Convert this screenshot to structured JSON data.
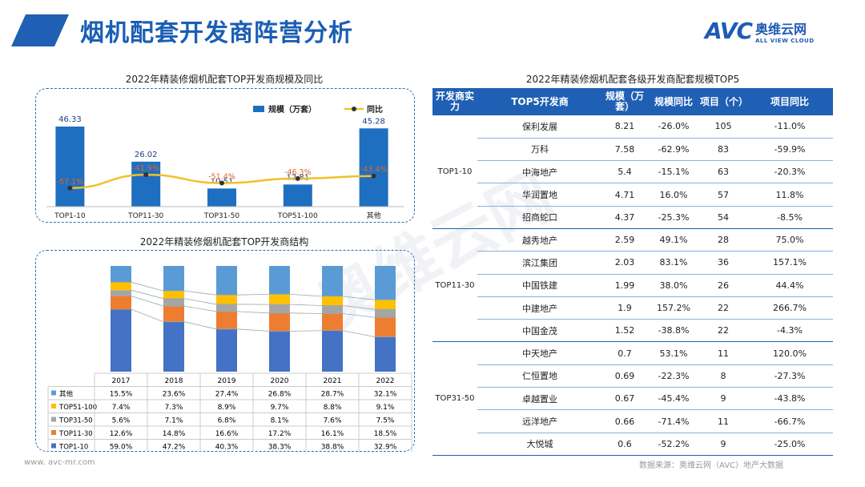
{
  "header": {
    "title": "烟机配套开发商阵营分析",
    "logo_mark": "AVC",
    "logo_cn": "奥维云网",
    "logo_en": "ALL VIEW CLOUD"
  },
  "colors": {
    "accent": "#1f5fb4",
    "bar": "#1f6fc0",
    "line": "#f2c027",
    "top1": "#4472c4",
    "top11": "#ed7d31",
    "top31": "#a5a5a5",
    "top51": "#ffc000",
    "other": "#5b9bd5"
  },
  "chart_data": [
    {
      "type": "bar",
      "title": "2022年精装修烟机配套TOP开发商规模及同比",
      "categories": [
        "TOP1-10",
        "TOP11-30",
        "TOP31-50",
        "TOP51-100",
        "其他"
      ],
      "series": [
        {
          "name": "规模（万套）",
          "type": "bar",
          "values": [
            46.33,
            26.02,
            10.51,
            12.81,
            45.28
          ],
          "labels": [
            "46.33",
            "26.02",
            "10.51",
            "12.81",
            "45.28"
          ]
        },
        {
          "name": "同比",
          "type": "line",
          "values": [
            -57.1,
            -41.9,
            -51.4,
            -46.3,
            -43.4
          ],
          "labels": [
            "-57.1%",
            "-41.9%",
            "-51.4%",
            "-46.3%",
            "-43.4%"
          ]
        }
      ],
      "legend": "top-right"
    },
    {
      "type": "bar",
      "stacked": true,
      "title": "2022年精装修烟机配套TOP开发商结构",
      "categories": [
        "2017",
        "2018",
        "2019",
        "2020",
        "2021",
        "2022"
      ],
      "series": [
        {
          "name": "其他",
          "values": [
            15.5,
            23.6,
            27.4,
            26.8,
            28.7,
            32.1
          ],
          "labels": [
            "15.5%",
            "23.6%",
            "27.4%",
            "26.8%",
            "28.7%",
            "32.1%"
          ]
        },
        {
          "name": "TOP51-100",
          "values": [
            7.4,
            7.3,
            8.9,
            9.7,
            8.8,
            9.1
          ],
          "labels": [
            "7.4%",
            "7.3%",
            "8.9%",
            "9.7%",
            "8.8%",
            "9.1%"
          ]
        },
        {
          "name": "TOP31-50",
          "values": [
            5.6,
            7.1,
            6.8,
            8.1,
            7.6,
            7.5
          ],
          "labels": [
            "5.6%",
            "7.1%",
            "6.8%",
            "8.1%",
            "7.6%",
            "7.5%"
          ]
        },
        {
          "name": "TOP11-30",
          "values": [
            12.6,
            14.8,
            16.6,
            17.2,
            16.1,
            18.5
          ],
          "labels": [
            "12.6%",
            "14.8%",
            "16.6%",
            "17.2%",
            "16.1%",
            "18.5%"
          ]
        },
        {
          "name": "TOP1-10",
          "values": [
            59.0,
            47.2,
            40.3,
            38.3,
            38.8,
            32.9
          ],
          "labels": [
            "59.0%",
            "47.2%",
            "40.3%",
            "38.3%",
            "38.8%",
            "32.9%"
          ]
        }
      ]
    },
    {
      "type": "table",
      "title": "2022年精装修烟机配套各级开发商配套规模TOP5",
      "headers": [
        "开发商实力",
        "TOP5开发商",
        "规模（万套）",
        "规模同比",
        "项目（个）",
        "项目同比"
      ],
      "groups": [
        {
          "label": "TOP1-10",
          "rows": [
            [
              "保利发展",
              "8.21",
              "-26.0%",
              "105",
              "-11.0%"
            ],
            [
              "万科",
              "7.58",
              "-62.9%",
              "83",
              "-59.9%"
            ],
            [
              "中海地产",
              "5.4",
              "-15.1%",
              "63",
              "-20.3%"
            ],
            [
              "华润置地",
              "4.71",
              "16.0%",
              "57",
              "11.8%"
            ],
            [
              "招商蛇口",
              "4.37",
              "-25.3%",
              "54",
              "-8.5%"
            ]
          ]
        },
        {
          "label": "TOP11-30",
          "rows": [
            [
              "越秀地产",
              "2.59",
              "49.1%",
              "28",
              "75.0%"
            ],
            [
              "滨江集团",
              "2.03",
              "83.1%",
              "36",
              "157.1%"
            ],
            [
              "中国铁建",
              "1.99",
              "38.0%",
              "26",
              "44.4%"
            ],
            [
              "中建地产",
              "1.9",
              "157.2%",
              "22",
              "266.7%"
            ],
            [
              "中国金茂",
              "1.52",
              "-38.8%",
              "22",
              "-4.3%"
            ]
          ]
        },
        {
          "label": "TOP31-50",
          "rows": [
            [
              "中天地产",
              "0.7",
              "53.1%",
              "11",
              "120.0%"
            ],
            [
              "仁恒置地",
              "0.69",
              "-22.3%",
              "8",
              "-27.3%"
            ],
            [
              "卓越置业",
              "0.67",
              "-45.4%",
              "9",
              "-43.8%"
            ],
            [
              "远洋地产",
              "0.66",
              "-71.4%",
              "11",
              "-66.7%"
            ],
            [
              "大悦城",
              "0.6",
              "-52.2%",
              "9",
              "-25.0%"
            ]
          ]
        }
      ]
    }
  ],
  "footer": {
    "site": "www. avc-mr.com",
    "source": "数据来源：奥维云网（AVC）地产大数据"
  },
  "watermark": "奥维云网"
}
